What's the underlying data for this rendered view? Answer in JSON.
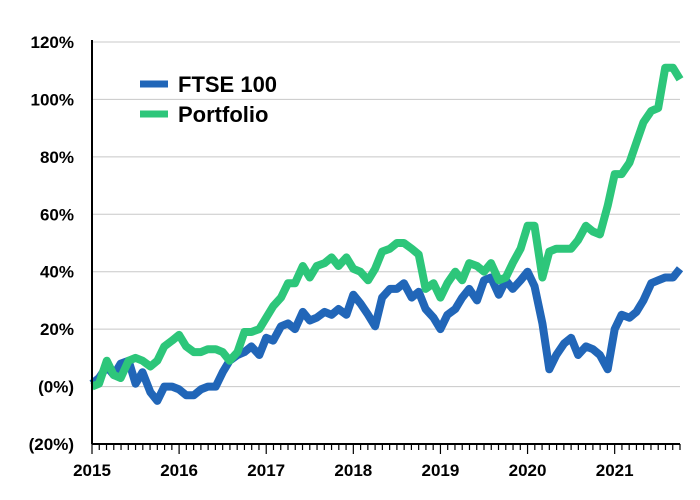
{
  "chart_data": {
    "type": "line",
    "title": "",
    "xlabel": "",
    "ylabel": "",
    "x_ticks": [
      "2015",
      "2016",
      "2017",
      "2018",
      "2019",
      "2020",
      "2021"
    ],
    "y_ticks": [
      {
        "value": -20,
        "label": "(20%)"
      },
      {
        "value": 0,
        "label": "(0%)"
      },
      {
        "value": 20,
        "label": "20%"
      },
      {
        "value": 40,
        "label": "40%"
      },
      {
        "value": 60,
        "label": "60%"
      },
      {
        "value": 80,
        "label": "80%"
      },
      {
        "value": 100,
        "label": "100%"
      },
      {
        "value": 120,
        "label": "120%"
      }
    ],
    "xlim": [
      2015.0,
      2021.75
    ],
    "ylim": [
      -20,
      120
    ],
    "grid": "horizontal",
    "legend_position": "top-left",
    "series": [
      {
        "name": "FTSE 100",
        "color": "#2166b8",
        "x": [
          2015.0,
          2015.08,
          2015.17,
          2015.25,
          2015.33,
          2015.42,
          2015.5,
          2015.58,
          2015.67,
          2015.75,
          2015.83,
          2015.92,
          2016.0,
          2016.08,
          2016.17,
          2016.25,
          2016.33,
          2016.42,
          2016.5,
          2016.58,
          2016.67,
          2016.75,
          2016.83,
          2016.92,
          2017.0,
          2017.08,
          2017.17,
          2017.25,
          2017.33,
          2017.42,
          2017.5,
          2017.58,
          2017.67,
          2017.75,
          2017.83,
          2017.92,
          2018.0,
          2018.08,
          2018.17,
          2018.25,
          2018.33,
          2018.42,
          2018.5,
          2018.58,
          2018.67,
          2018.75,
          2018.83,
          2018.92,
          2019.0,
          2019.08,
          2019.17,
          2019.25,
          2019.33,
          2019.42,
          2019.5,
          2019.58,
          2019.67,
          2019.75,
          2019.83,
          2019.92,
          2020.0,
          2020.08,
          2020.17,
          2020.25,
          2020.33,
          2020.42,
          2020.5,
          2020.58,
          2020.67,
          2020.75,
          2020.83,
          2020.92,
          2021.0,
          2021.08,
          2021.17,
          2021.25,
          2021.33,
          2021.42,
          2021.5,
          2021.58,
          2021.67,
          2021.75
        ],
        "values": [
          1,
          3,
          7,
          4,
          8,
          9,
          1,
          5,
          -2,
          -5,
          0,
          0,
          -1,
          -3,
          -3,
          -1,
          0,
          0,
          5,
          9,
          11,
          12,
          14,
          11,
          17,
          16,
          21,
          22,
          20,
          26,
          23,
          24,
          26,
          25,
          27,
          25,
          32,
          29,
          25,
          21,
          31,
          34,
          34,
          36,
          31,
          33,
          27,
          24,
          20,
          25,
          27,
          31,
          34,
          30,
          37,
          38,
          32,
          37,
          34,
          37,
          40,
          35,
          22,
          6,
          11,
          15,
          17,
          11,
          14,
          13,
          11,
          6,
          20,
          25,
          24,
          26,
          30,
          36,
          37,
          38,
          38,
          41
        ]
      },
      {
        "name": "Portfolio",
        "color": "#2dc67a",
        "x": [
          2015.0,
          2015.08,
          2015.17,
          2015.25,
          2015.33,
          2015.42,
          2015.5,
          2015.58,
          2015.67,
          2015.75,
          2015.83,
          2015.92,
          2016.0,
          2016.08,
          2016.17,
          2016.25,
          2016.33,
          2016.42,
          2016.5,
          2016.58,
          2016.67,
          2016.75,
          2016.83,
          2016.92,
          2017.0,
          2017.08,
          2017.17,
          2017.25,
          2017.33,
          2017.42,
          2017.5,
          2017.58,
          2017.67,
          2017.75,
          2017.83,
          2017.92,
          2018.0,
          2018.08,
          2018.17,
          2018.25,
          2018.33,
          2018.42,
          2018.5,
          2018.58,
          2018.67,
          2018.75,
          2018.83,
          2018.92,
          2019.0,
          2019.08,
          2019.17,
          2019.25,
          2019.33,
          2019.42,
          2019.5,
          2019.58,
          2019.67,
          2019.75,
          2019.83,
          2019.92,
          2020.0,
          2020.08,
          2020.17,
          2020.25,
          2020.33,
          2020.42,
          2020.5,
          2020.58,
          2020.67,
          2020.75,
          2020.83,
          2020.92,
          2021.0,
          2021.08,
          2021.17,
          2021.25,
          2021.33,
          2021.42,
          2021.5,
          2021.58,
          2021.67,
          2021.75
        ],
        "values": [
          0,
          1,
          9,
          4,
          3,
          9,
          10,
          9,
          7,
          9,
          14,
          16,
          18,
          14,
          12,
          12,
          13,
          13,
          12,
          9,
          12,
          19,
          19,
          20,
          24,
          28,
          31,
          36,
          36,
          42,
          38,
          42,
          43,
          45,
          42,
          45,
          41,
          40,
          37,
          41,
          47,
          48,
          50,
          50,
          48,
          46,
          34,
          36,
          31,
          36,
          40,
          37,
          43,
          42,
          40,
          43,
          37,
          38,
          43,
          48,
          56,
          56,
          38,
          47,
          48,
          48,
          48,
          51,
          56,
          54,
          53,
          63,
          74,
          74,
          78,
          85,
          92,
          96,
          97,
          111,
          111,
          107
        ]
      }
    ]
  }
}
